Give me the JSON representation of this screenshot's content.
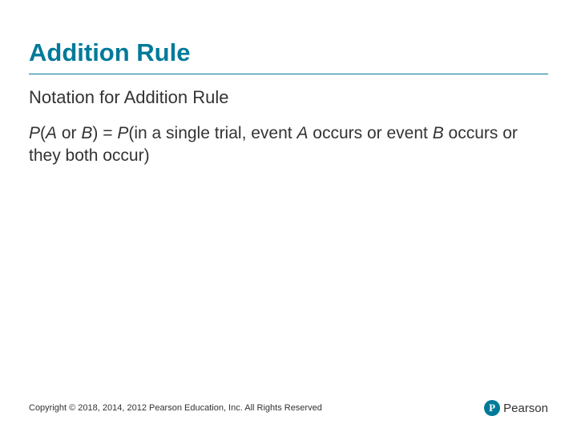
{
  "slide": {
    "title": "Addition Rule",
    "title_color": "#007a99",
    "title_fontsize": 31,
    "divider_color": "#007a99",
    "subtitle": "Notation for Addition Rule",
    "subtitle_fontsize": 22,
    "body": {
      "p_open": "P",
      "lhs_a": "A",
      "lhs_or": " or ",
      "lhs_b": "B",
      "lhs_close_eq": ") = ",
      "p2": "P",
      "rhs_open": "(in a single trial, event ",
      "rhs_a": "A",
      "rhs_mid1": " occurs or event ",
      "rhs_b": "B",
      "rhs_tail": " occurs or they both occur)"
    },
    "body_fontsize": 21,
    "body_color": "#333333",
    "background_color": "#ffffff"
  },
  "footer": {
    "copyright": "Copyright © 2018, 2014, 2012 Pearson Education, Inc. All Rights Reserved",
    "copyright_fontsize": 11,
    "logo_letter": "P",
    "logo_text": "Pearson",
    "logo_color": "#007a99"
  }
}
